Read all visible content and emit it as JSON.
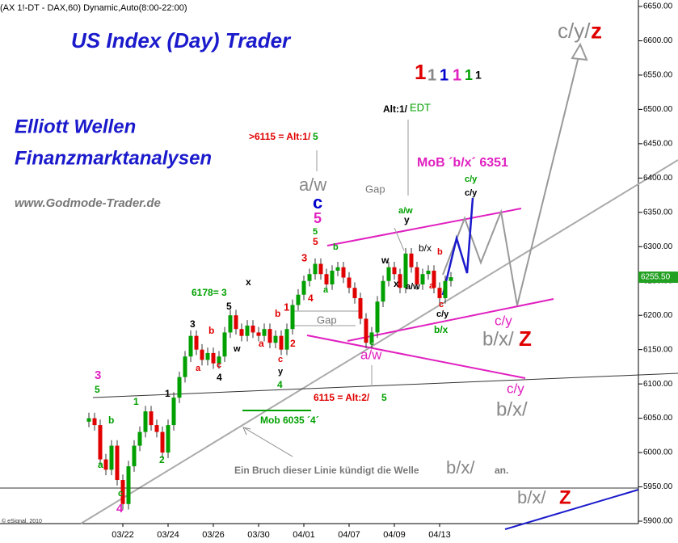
{
  "chart_data": {
    "type": "candlestick",
    "header": "(AX 1!-DT - DAX,60) Dynamic,Auto(8:00-22:00)",
    "title": "US Index (Day) Trader",
    "subtitle_lines": [
      "Elliott Wellen",
      "Finanzmarktanalysen"
    ],
    "website": "www.Godmode-Trader.de",
    "copyright": "© eSignal, 2010",
    "up_color": "#00a000",
    "down_color": "#e00000",
    "open": [
      6045,
      6050,
      6040,
      5990,
      5975,
      6010,
      5960,
      5925,
      5980,
      6010,
      6030,
      6060,
      6040,
      6030,
      6000,
      6040,
      6080,
      6110,
      6140,
      6170,
      6150,
      6135,
      6145,
      6130,
      6140,
      6175,
      6200,
      6180,
      6170,
      6185,
      6175,
      6170,
      6180,
      6160,
      6170,
      6150,
      6180,
      6215,
      6230,
      6250,
      6260,
      6275,
      6260,
      6245,
      6265,
      6270,
      6255,
      6240,
      6225,
      6195,
      6160,
      6175,
      6220,
      6250,
      6270,
      6260,
      6240,
      6290,
      6270,
      6245,
      6260,
      6265,
      6240,
      6225,
      6250
    ],
    "high": [
      6058,
      6058,
      6048,
      5998,
      6018,
      6018,
      5968,
      5988,
      6018,
      6038,
      6068,
      6068,
      6048,
      6038,
      6048,
      6088,
      6118,
      6148,
      6178,
      6178,
      6158,
      6153,
      6153,
      6148,
      6183,
      6208,
      6208,
      6188,
      6193,
      6193,
      6183,
      6188,
      6188,
      6178,
      6178,
      6188,
      6223,
      6238,
      6258,
      6268,
      6283,
      6283,
      6268,
      6273,
      6278,
      6278,
      6263,
      6248,
      6233,
      6203,
      6183,
      6228,
      6258,
      6278,
      6278,
      6268,
      6298,
      6298,
      6278,
      6268,
      6273,
      6273,
      6248,
      6258,
      6263
    ],
    "low": [
      6037,
      6032,
      5982,
      5967,
      5967,
      5952,
      5917,
      5917,
      5972,
      6002,
      6022,
      6032,
      6022,
      5992,
      5992,
      6032,
      6072,
      6102,
      6132,
      6142,
      6127,
      6127,
      6122,
      6122,
      6132,
      6167,
      6172,
      6162,
      6162,
      6167,
      6162,
      6162,
      6152,
      6152,
      6142,
      6142,
      6172,
      6207,
      6222,
      6242,
      6252,
      6252,
      6237,
      6237,
      6257,
      6247,
      6232,
      6217,
      6187,
      6152,
      6152,
      6167,
      6212,
      6242,
      6252,
      6232,
      6232,
      6262,
      6237,
      6237,
      6252,
      6232,
      6217,
      6217,
      6242
    ],
    "close": [
      6050,
      6040,
      5990,
      5975,
      6010,
      5960,
      5925,
      5980,
      6010,
      6030,
      6060,
      6040,
      6030,
      6000,
      6040,
      6080,
      6110,
      6140,
      6170,
      6150,
      6135,
      6145,
      6130,
      6140,
      6175,
      6200,
      6180,
      6170,
      6185,
      6175,
      6170,
      6180,
      6160,
      6170,
      6150,
      6180,
      6215,
      6230,
      6250,
      6260,
      6275,
      6260,
      6245,
      6265,
      6270,
      6255,
      6240,
      6225,
      6195,
      6160,
      6175,
      6220,
      6250,
      6270,
      6260,
      6240,
      6290,
      6270,
      6245,
      6260,
      6265,
      6240,
      6225,
      6250,
      6255.5
    ],
    "xlim": [
      -6,
      96
    ],
    "xticks": [
      {
        "value": 6,
        "label": "03/22"
      },
      {
        "value": 14,
        "label": "03/24"
      },
      {
        "value": 22,
        "label": "03/26"
      },
      {
        "value": 30,
        "label": "03/30"
      },
      {
        "value": 38,
        "label": "04/01"
      },
      {
        "value": 46,
        "label": "04/07"
      },
      {
        "value": 54,
        "label": "04/09"
      },
      {
        "value": 62,
        "label": "04/13"
      }
    ],
    "ylim": [
      5900,
      6650
    ],
    "yticks": [
      {
        "value": 6650,
        "label": "6650.00"
      },
      {
        "value": 6600,
        "label": "6600.00"
      },
      {
        "value": 6550,
        "label": "6550.00"
      },
      {
        "value": 6500,
        "label": "6500.00"
      },
      {
        "value": 6450,
        "label": "6450.00"
      },
      {
        "value": 6400,
        "label": "6400.00"
      },
      {
        "value": 6350,
        "label": "6350.00"
      },
      {
        "value": 6300,
        "label": "6300.00"
      },
      {
        "value": 6250,
        "label": "6250.00"
      },
      {
        "value": 6200,
        "label": "6200.00"
      },
      {
        "value": 6150,
        "label": "6150.00"
      },
      {
        "value": 6100,
        "label": "6100.00"
      },
      {
        "value": 6050,
        "label": "6050.00"
      },
      {
        "value": 6000,
        "label": "6000.00"
      },
      {
        "value": 5950,
        "label": "5950.00"
      },
      {
        "value": 5900,
        "label": "5900.00"
      }
    ],
    "last_price": {
      "value": 6255.5,
      "label": "6255.50"
    },
    "annotations": [
      {
        "text": "1",
        "color": "#e00000"
      },
      {
        "text": "1",
        "color": "#888888"
      },
      {
        "text": "1",
        "color": "#0000cc"
      },
      {
        "text": "1",
        "color": "#e020c0"
      },
      {
        "text": "1",
        "color": "#00a000"
      },
      {
        "text": "1",
        "color": "#000000"
      },
      {
        "text": "Alt:1/",
        "color": "#000000"
      },
      {
        "text": "EDT",
        "color": "#00a000"
      },
      {
        "text": ">6115 = Alt:1/",
        "color": "#e00000"
      },
      {
        "text": "5",
        "color": "#00a000"
      },
      {
        "text": "a/w",
        "color": "#888888"
      },
      {
        "text": "c",
        "color": "#0000cc"
      },
      {
        "text": "5",
        "color": "#e020c0"
      },
      {
        "text": "5",
        "color": "#00a000"
      },
      {
        "text": "5",
        "color": "#e00000"
      },
      {
        "text": "3",
        "color": "#e00000"
      },
      {
        "text": "4",
        "color": "#e00000"
      },
      {
        "text": "1",
        "color": "#e00000"
      },
      {
        "text": "2",
        "color": "#e00000"
      },
      {
        "text": "b",
        "color": "#e00000"
      },
      {
        "text": "a",
        "color": "#e00000"
      },
      {
        "text": "6178= 3",
        "color": "#00a000"
      },
      {
        "text": "x",
        "color": "#000000"
      },
      {
        "text": "5",
        "color": "#000000"
      },
      {
        "text": "w",
        "color": "#000000"
      },
      {
        "text": "c",
        "color": "#e00000"
      },
      {
        "text": "4",
        "color": "#000000"
      },
      {
        "text": "3",
        "color": "#000000"
      },
      {
        "text": "b",
        "color": "#e00000"
      },
      {
        "text": "a",
        "color": "#e00000"
      },
      {
        "text": "c",
        "color": "#e00000"
      },
      {
        "text": "y",
        "color": "#000000"
      },
      {
        "text": "4",
        "color": "#00a000"
      },
      {
        "text": "3",
        "color": "#e020c0"
      },
      {
        "text": "5",
        "color": "#00a000"
      },
      {
        "text": "b",
        "color": "#00a000"
      },
      {
        "text": "a",
        "color": "#00a000"
      },
      {
        "text": "c",
        "color": "#00a000"
      },
      {
        "text": "4",
        "color": "#e020c0"
      },
      {
        "text": "1",
        "color": "#00a000"
      },
      {
        "text": "1",
        "color": "#000000"
      },
      {
        "text": "2",
        "color": "#00a000"
      },
      {
        "text": "Gap",
        "color": "#777777"
      },
      {
        "text": "Gap",
        "color": "#777777"
      },
      {
        "text": "b",
        "color": "#00a000"
      },
      {
        "text": "a",
        "color": "#00a000"
      },
      {
        "text": "c",
        "color": "#00a000"
      },
      {
        "text": "a/w",
        "color": "#e020c0"
      },
      {
        "text": "w",
        "color": "#000000"
      },
      {
        "text": "x",
        "color": "#000000"
      },
      {
        "text": "a/w",
        "color": "#000000"
      },
      {
        "text": "b/x",
        "color": "#000000"
      },
      {
        "text": "a",
        "color": "#e00000"
      },
      {
        "text": "b",
        "color": "#e00000"
      },
      {
        "text": "c",
        "color": "#e00000"
      },
      {
        "text": "c/y",
        "color": "#000000"
      },
      {
        "text": "b/x",
        "color": "#00a000"
      },
      {
        "text": "a/w",
        "color": "#00a000"
      },
      {
        "text": "y",
        "color": "#000000"
      },
      {
        "text": "c/y",
        "color": "#00a000"
      },
      {
        "text": "c/y",
        "color": "#000000"
      },
      {
        "text": "MoB ´b/x´ 6351",
        "color": "#e020c0"
      },
      {
        "text": "c/y",
        "color": "#e020c0"
      },
      {
        "text": "b/x/",
        "color": "#888888"
      },
      {
        "text": "Z",
        "color": "#e00000"
      },
      {
        "text": "c/y",
        "color": "#e020c0"
      },
      {
        "text": "b/x/",
        "color": "#888888"
      },
      {
        "text": "c/y/",
        "color": "#888888"
      },
      {
        "text": "z",
        "color": "#e00000"
      },
      {
        "text": "6115 = Alt:2/",
        "color": "#e00000"
      },
      {
        "text": "5",
        "color": "#00a000"
      },
      {
        "text": "Mob 6035 ´4´",
        "color": "#00a000"
      },
      {
        "text": "Ein Bruch dieser Linie kündigt die Welle",
        "color": "#777777"
      },
      {
        "text": "b/x/",
        "color": "#888888"
      },
      {
        "text": "an.",
        "color": "#777777"
      },
      {
        "text": "b/x/",
        "color": "#888888"
      },
      {
        "text": "Z",
        "color": "#e00000"
      }
    ]
  }
}
